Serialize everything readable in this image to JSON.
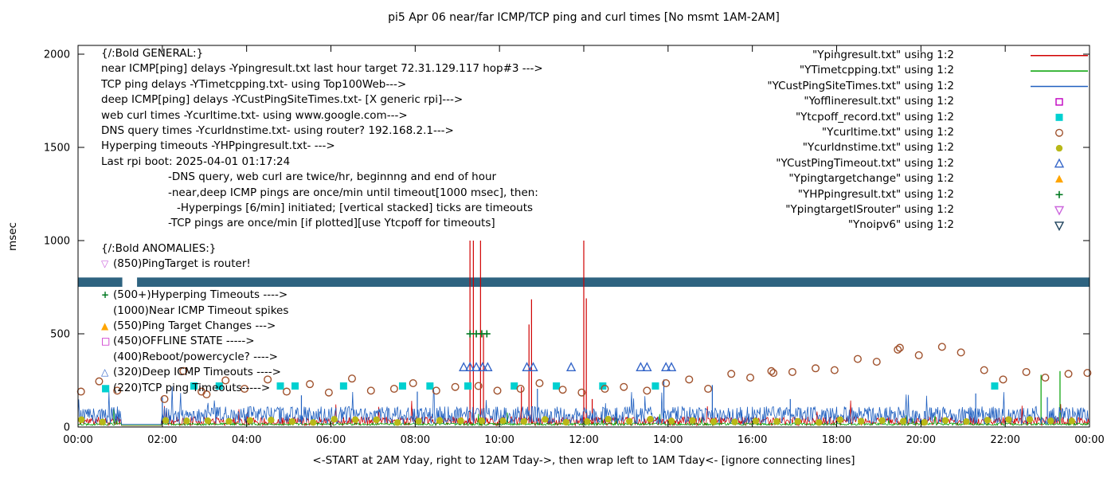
{
  "title": "pi5 Apr 06  near/far ICMP/TCP ping and curl times [No msmt 1AM-2AM]",
  "ylabel": "msec",
  "xlabel": "<-START at 2AM Yday, right to 12AM Tday->, then wrap left to 1AM Tday<- [ignore connecting lines]",
  "axes": {
    "y_ticks": [
      0,
      500,
      1000,
      1500,
      2000
    ],
    "x_ticks": [
      "00:00",
      "02:00",
      "04:00",
      "06:00",
      "08:00",
      "10:00",
      "12:00",
      "14:00",
      "16:00",
      "18:00",
      "20:00",
      "22:00",
      "00:00"
    ],
    "y_range_msec": [
      0,
      2000
    ],
    "x_range_hours": [
      0,
      24
    ]
  },
  "legend": [
    {
      "label": "\"Ypingresult.txt\" using 1:2",
      "type": "line",
      "color": "#d00000"
    },
    {
      "label": "\"YTimetcpping.txt\" using 1:2",
      "type": "line",
      "color": "#00a000"
    },
    {
      "label": "\"YCustPingSiteTimes.txt\" using 1:2",
      "type": "line",
      "color": "#2060c0"
    },
    {
      "label": "\"Yofflineresult.txt\" using 1:2",
      "type": "square-open",
      "color": "#c000c0"
    },
    {
      "label": "\"Ytcpoff_record.txt\" using 1:2",
      "type": "square-filled",
      "color": "#00d0d0"
    },
    {
      "label": "\"Ycurltime.txt\" using 1:2",
      "type": "circle-open",
      "color": "#a0522d"
    },
    {
      "label": "\"Ycurldnstime.txt\" using 1:2",
      "type": "circle-filled",
      "color": "#b8b818"
    },
    {
      "label": "\"YCustPingTimeout.txt\" using 1:2",
      "type": "triangle-up-open",
      "color": "#3465c8"
    },
    {
      "label": "\"Ypingtargetchange\" using 1:2",
      "type": "triangle-up-filled",
      "color": "#ffa500"
    },
    {
      "label": "\"YHPpingresult.txt\" using 1:2",
      "type": "plus",
      "color": "#007820"
    },
    {
      "label": "\"YpingtargetISrouter\" using 1:2",
      "type": "triangle-down-open",
      "color": "#cc66dd"
    },
    {
      "label": "\"Ynoipv6\" using 1:2",
      "type": "triangle-down-open",
      "color": "#20445e"
    }
  ],
  "general_lines": [
    {
      "text": "{/:Bold GENERAL:}",
      "indent": 0
    },
    {
      "text": "near ICMP[ping] delays -Ypingresult.txt last hour target 72.31.129.117 hop#3 --->",
      "indent": 0
    },
    {
      "text": "TCP ping delays -YTimetcpping.txt- using Top100Web--->",
      "indent": 0
    },
    {
      "text": "deep ICMP[ping] delays -YCustPingSiteTimes.txt- [X generic rpi]--->",
      "indent": 0
    },
    {
      "text": "web curl times -Ycurltime.txt- using www.google.com--->",
      "indent": 0
    },
    {
      "text": "DNS query times -Ycurldnstime.txt- using router? 192.168.2.1--->",
      "indent": 0
    },
    {
      "text": "Hyperping timeouts -YHPpingresult.txt- --->",
      "indent": 0
    },
    {
      "text": "Last rpi boot: 2025-04-01 01:17:24",
      "indent": 0
    },
    {
      "text": "-DNS query, web curl are twice/hr, beginnng and end of hour",
      "indent": 1
    },
    {
      "text": "-near,deep ICMP pings are once/min until timeout[1000 msec], then:",
      "indent": 1
    },
    {
      "text": "-Hyperpings [6/min] initiated; [vertical stacked] ticks are timeouts",
      "indent": 2
    },
    {
      "text": "-TCP pings are once/min [if plotted][use Ytcpoff for timeouts]",
      "indent": 1
    }
  ],
  "anomalies": [
    {
      "icon": "",
      "color": "",
      "text": "{/:Bold ANOMALIES:}",
      "no_icon_col": true
    },
    {
      "icon": "triangle-down-open",
      "color": "#cc66dd",
      "text": "(850)PingTarget is router!"
    },
    {
      "icon": "",
      "color": "",
      "text": "",
      "no_icon_col": true
    },
    {
      "icon": "plus",
      "color": "#007820",
      "text": "(500+)Hyperping Timeouts ---->"
    },
    {
      "icon": "",
      "color": "",
      "text": "(1000)Near ICMP Timeout spikes"
    },
    {
      "icon": "triangle-up-filled",
      "color": "#ffa500",
      "text": "(550)Ping Target Changes --->"
    },
    {
      "icon": "square-open",
      "color": "#c000c0",
      "text": "(450)OFFLINE STATE ----->"
    },
    {
      "icon": "",
      "color": "",
      "text": "(400)Reboot/powercycle? ---->"
    },
    {
      "icon": "triangle-up-open",
      "color": "#3465c8",
      "text": "(320)Deep ICMP Timeouts ---->"
    },
    {
      "icon": "square-filled",
      "color": "#00d0d0",
      "text": "(220)TCP ping Timeouts----->"
    }
  ],
  "chart_data": {
    "type": "line",
    "title": "pi5 Apr 06  near/far ICMP/TCP ping and curl times [No msmt 1AM-2AM]",
    "xlabel": "<-START at 2AM Yday, right to 12AM Tday->, then wrap left to 1AM Tday<- [ignore connecting lines]",
    "ylabel": "msec",
    "ylim": [
      0,
      2000
    ],
    "xlim_hours": [
      0,
      24
    ],
    "grid": false,
    "legend_position": "top-right-inside",
    "no_measurement_window": "01:00-02:00",
    "quiet_hours": [
      1.03,
      1.97
    ],
    "series": [
      {
        "name": "Ypingresult.txt",
        "style": "line",
        "color": "#d00000",
        "seed": 11,
        "noise_msec": {
          "min": 8,
          "max": 55,
          "spike_prob": 0.012,
          "spike_mult": 2.6
        },
        "timeout_spikes_hour_msec": [
          [
            9.3,
            1000
          ],
          [
            9.38,
            1000
          ],
          [
            9.55,
            1000
          ],
          [
            9.62,
            495
          ],
          [
            10.52,
            215
          ],
          [
            10.7,
            550
          ],
          [
            10.76,
            685
          ],
          [
            12.0,
            1000
          ],
          [
            12.06,
            690
          ],
          [
            12.2,
            150
          ]
        ]
      },
      {
        "name": "YTimetcpping.txt",
        "style": "line",
        "color": "#00a000",
        "seed": 22,
        "noise_msec": {
          "min": 9,
          "max": 22,
          "spike_prob": 0.01,
          "spike_mult": 4.0
        },
        "timeout_spikes_hour_msec": [
          [
            0.85,
            95
          ],
          [
            22.85,
            280
          ],
          [
            23.3,
            300
          ]
        ]
      },
      {
        "name": "YCustPingSiteTimes.txt",
        "style": "line",
        "color": "#2060c0",
        "seed": 33,
        "noise_msec": {
          "min": 15,
          "max": 110,
          "spike_prob": 0.02,
          "spike_mult": 2.0
        },
        "timeout_spikes_hour_msec": [
          [
            2.0,
            160
          ],
          [
            5.3,
            170
          ],
          [
            8.05,
            190
          ],
          [
            10.9,
            205
          ],
          [
            13.9,
            255
          ],
          [
            15.05,
            225
          ],
          [
            16.9,
            150
          ],
          [
            21.3,
            180
          ],
          [
            23.0,
            160
          ]
        ]
      },
      {
        "name": "Yofflineresult.txt",
        "style": "square-open",
        "color": "#c000c0",
        "value_msec": 450,
        "hours": []
      },
      {
        "name": "Ytcpoff_record.txt",
        "style": "square-filled",
        "color": "#00d0d0",
        "value_msec": 220,
        "hours": [
          2.75,
          3.35,
          4.8,
          5.15,
          6.3,
          7.7,
          8.35,
          9.25,
          10.35,
          11.35,
          12.45,
          13.7,
          21.75
        ]
      },
      {
        "name": "Ycurltime.txt",
        "style": "circle-open",
        "color": "#a0522d",
        "points": [
          [
            0.07,
            190
          ],
          [
            0.5,
            245
          ],
          [
            0.93,
            195
          ],
          [
            2.05,
            150
          ],
          [
            2.5,
            300
          ],
          [
            2.93,
            190
          ],
          [
            3.05,
            175
          ],
          [
            3.5,
            250
          ],
          [
            3.95,
            205
          ],
          [
            4.5,
            255
          ],
          [
            4.95,
            190
          ],
          [
            5.5,
            230
          ],
          [
            5.95,
            185
          ],
          [
            6.5,
            260
          ],
          [
            6.95,
            195
          ],
          [
            7.5,
            205
          ],
          [
            7.95,
            235
          ],
          [
            8.5,
            195
          ],
          [
            8.95,
            215
          ],
          [
            9.5,
            220
          ],
          [
            9.95,
            195
          ],
          [
            10.5,
            205
          ],
          [
            10.95,
            235
          ],
          [
            11.5,
            200
          ],
          [
            11.95,
            185
          ],
          [
            12.5,
            205
          ],
          [
            12.95,
            215
          ],
          [
            13.5,
            195
          ],
          [
            13.95,
            235
          ],
          [
            14.5,
            255
          ],
          [
            14.95,
            205
          ],
          [
            15.5,
            285
          ],
          [
            15.95,
            265
          ],
          [
            16.45,
            300
          ],
          [
            16.5,
            290
          ],
          [
            16.95,
            295
          ],
          [
            17.5,
            315
          ],
          [
            17.95,
            305
          ],
          [
            18.5,
            365
          ],
          [
            18.95,
            350
          ],
          [
            19.45,
            415
          ],
          [
            19.5,
            425
          ],
          [
            19.95,
            385
          ],
          [
            20.5,
            430
          ],
          [
            20.95,
            400
          ],
          [
            21.5,
            305
          ],
          [
            21.95,
            255
          ],
          [
            22.5,
            295
          ],
          [
            22.95,
            265
          ],
          [
            23.5,
            285
          ],
          [
            23.95,
            290
          ]
        ]
      },
      {
        "name": "Ycurldnstime.txt",
        "style": "circle-filled",
        "color": "#b8b818",
        "generator": {
          "start_hour": 0.08,
          "end_hour": 23.92,
          "step_hour": 0.5,
          "msec_min": 24,
          "msec_max": 42,
          "seed": 44
        }
      },
      {
        "name": "YCustPingTimeout.txt",
        "style": "triangle-up-open",
        "color": "#3465c8",
        "value_msec": 320,
        "hours": [
          9.15,
          9.3,
          9.45,
          9.6,
          9.72,
          10.65,
          10.8,
          11.7,
          13.35,
          13.5,
          13.95,
          14.08
        ]
      },
      {
        "name": "Ypingtargetchange",
        "style": "triangle-up-filled",
        "color": "#ffa500",
        "value_msec": 550,
        "hours": []
      },
      {
        "name": "YHPpingresult.txt",
        "style": "plus",
        "color": "#007820",
        "value_msec": 500,
        "hours": [
          9.3,
          9.45,
          9.58,
          9.7
        ]
      },
      {
        "name": "YpingtargetISrouter",
        "style": "triangle-down-open",
        "color": "#cc66dd",
        "value_msec": 850,
        "hours": []
      },
      {
        "name": "Ynoipv6",
        "style": "band",
        "color": "#2e6380",
        "y_msec": [
          752,
          802
        ],
        "segments_hours": [
          [
            0,
            1.05
          ],
          [
            1.4,
            24
          ]
        ]
      }
    ]
  }
}
